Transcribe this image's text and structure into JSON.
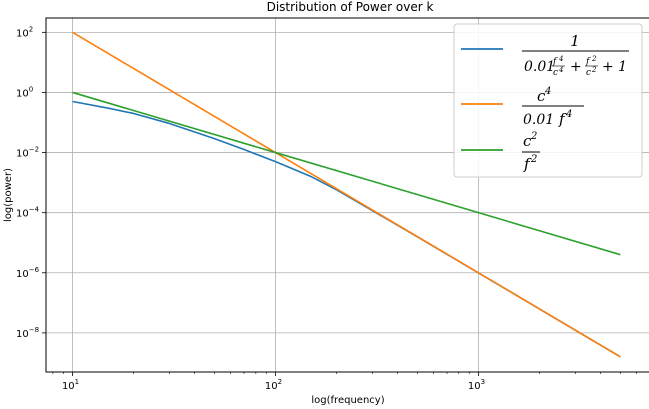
{
  "chart_data": {
    "type": "line",
    "title": "Distribution of Power over k",
    "xlabel": "log(frequency)",
    "ylabel": "log(power)",
    "x_scale": "log",
    "y_scale": "log",
    "xlim": [
      7.4,
      7000
    ],
    "ylim": [
      5e-10,
      300
    ],
    "grid": true,
    "legend_position": "upper right",
    "x_ticks": [
      {
        "value": 10,
        "base": "10",
        "exp": "1"
      },
      {
        "value": 100,
        "base": "10",
        "exp": "2"
      },
      {
        "value": 1000,
        "base": "10",
        "exp": "3"
      }
    ],
    "y_ticks": [
      {
        "value": 100.0,
        "base": "10",
        "exp": "2"
      },
      {
        "value": 1.0,
        "base": "10",
        "exp": "0"
      },
      {
        "value": 0.01,
        "base": "10",
        "exp": "−2"
      },
      {
        "value": 0.0001,
        "base": "10",
        "exp": "−4"
      },
      {
        "value": 1e-06,
        "base": "10",
        "exp": "−6"
      },
      {
        "value": 1e-08,
        "base": "10",
        "exp": "−8"
      }
    ],
    "series": [
      {
        "name": "1 / (0.01 f^4/c^4 + f^2/c^2 + 1)",
        "color": "#1f77b4",
        "x": [
          10,
          15,
          20,
          30,
          50,
          70,
          100,
          150,
          200,
          300,
          400,
          500,
          700,
          1000,
          1500,
          2000,
          3000,
          4000,
          5000
        ],
        "y": [
          0.5,
          0.3,
          0.2,
          0.093,
          0.029,
          0.0126,
          0.005,
          0.00158,
          0.000577,
          0.000117,
          3.8e-05,
          1.58e-05,
          4.1e-06,
          9.9e-07,
          1.97e-07,
          6.2e-08,
          1.23e-08,
          3.9e-09,
          1.6e-09
        ]
      },
      {
        "name": "c^4 / (0.01 f^4)",
        "color": "#ff7f0e",
        "x": [
          10,
          100,
          1000,
          5000
        ],
        "y": [
          100,
          0.01,
          1e-06,
          1.6e-09
        ]
      },
      {
        "name": "c^2 / f^2",
        "color": "#2ca02c",
        "x": [
          10,
          100,
          1000,
          5000
        ],
        "y": [
          1,
          0.01,
          0.0001,
          4e-06
        ]
      }
    ]
  }
}
